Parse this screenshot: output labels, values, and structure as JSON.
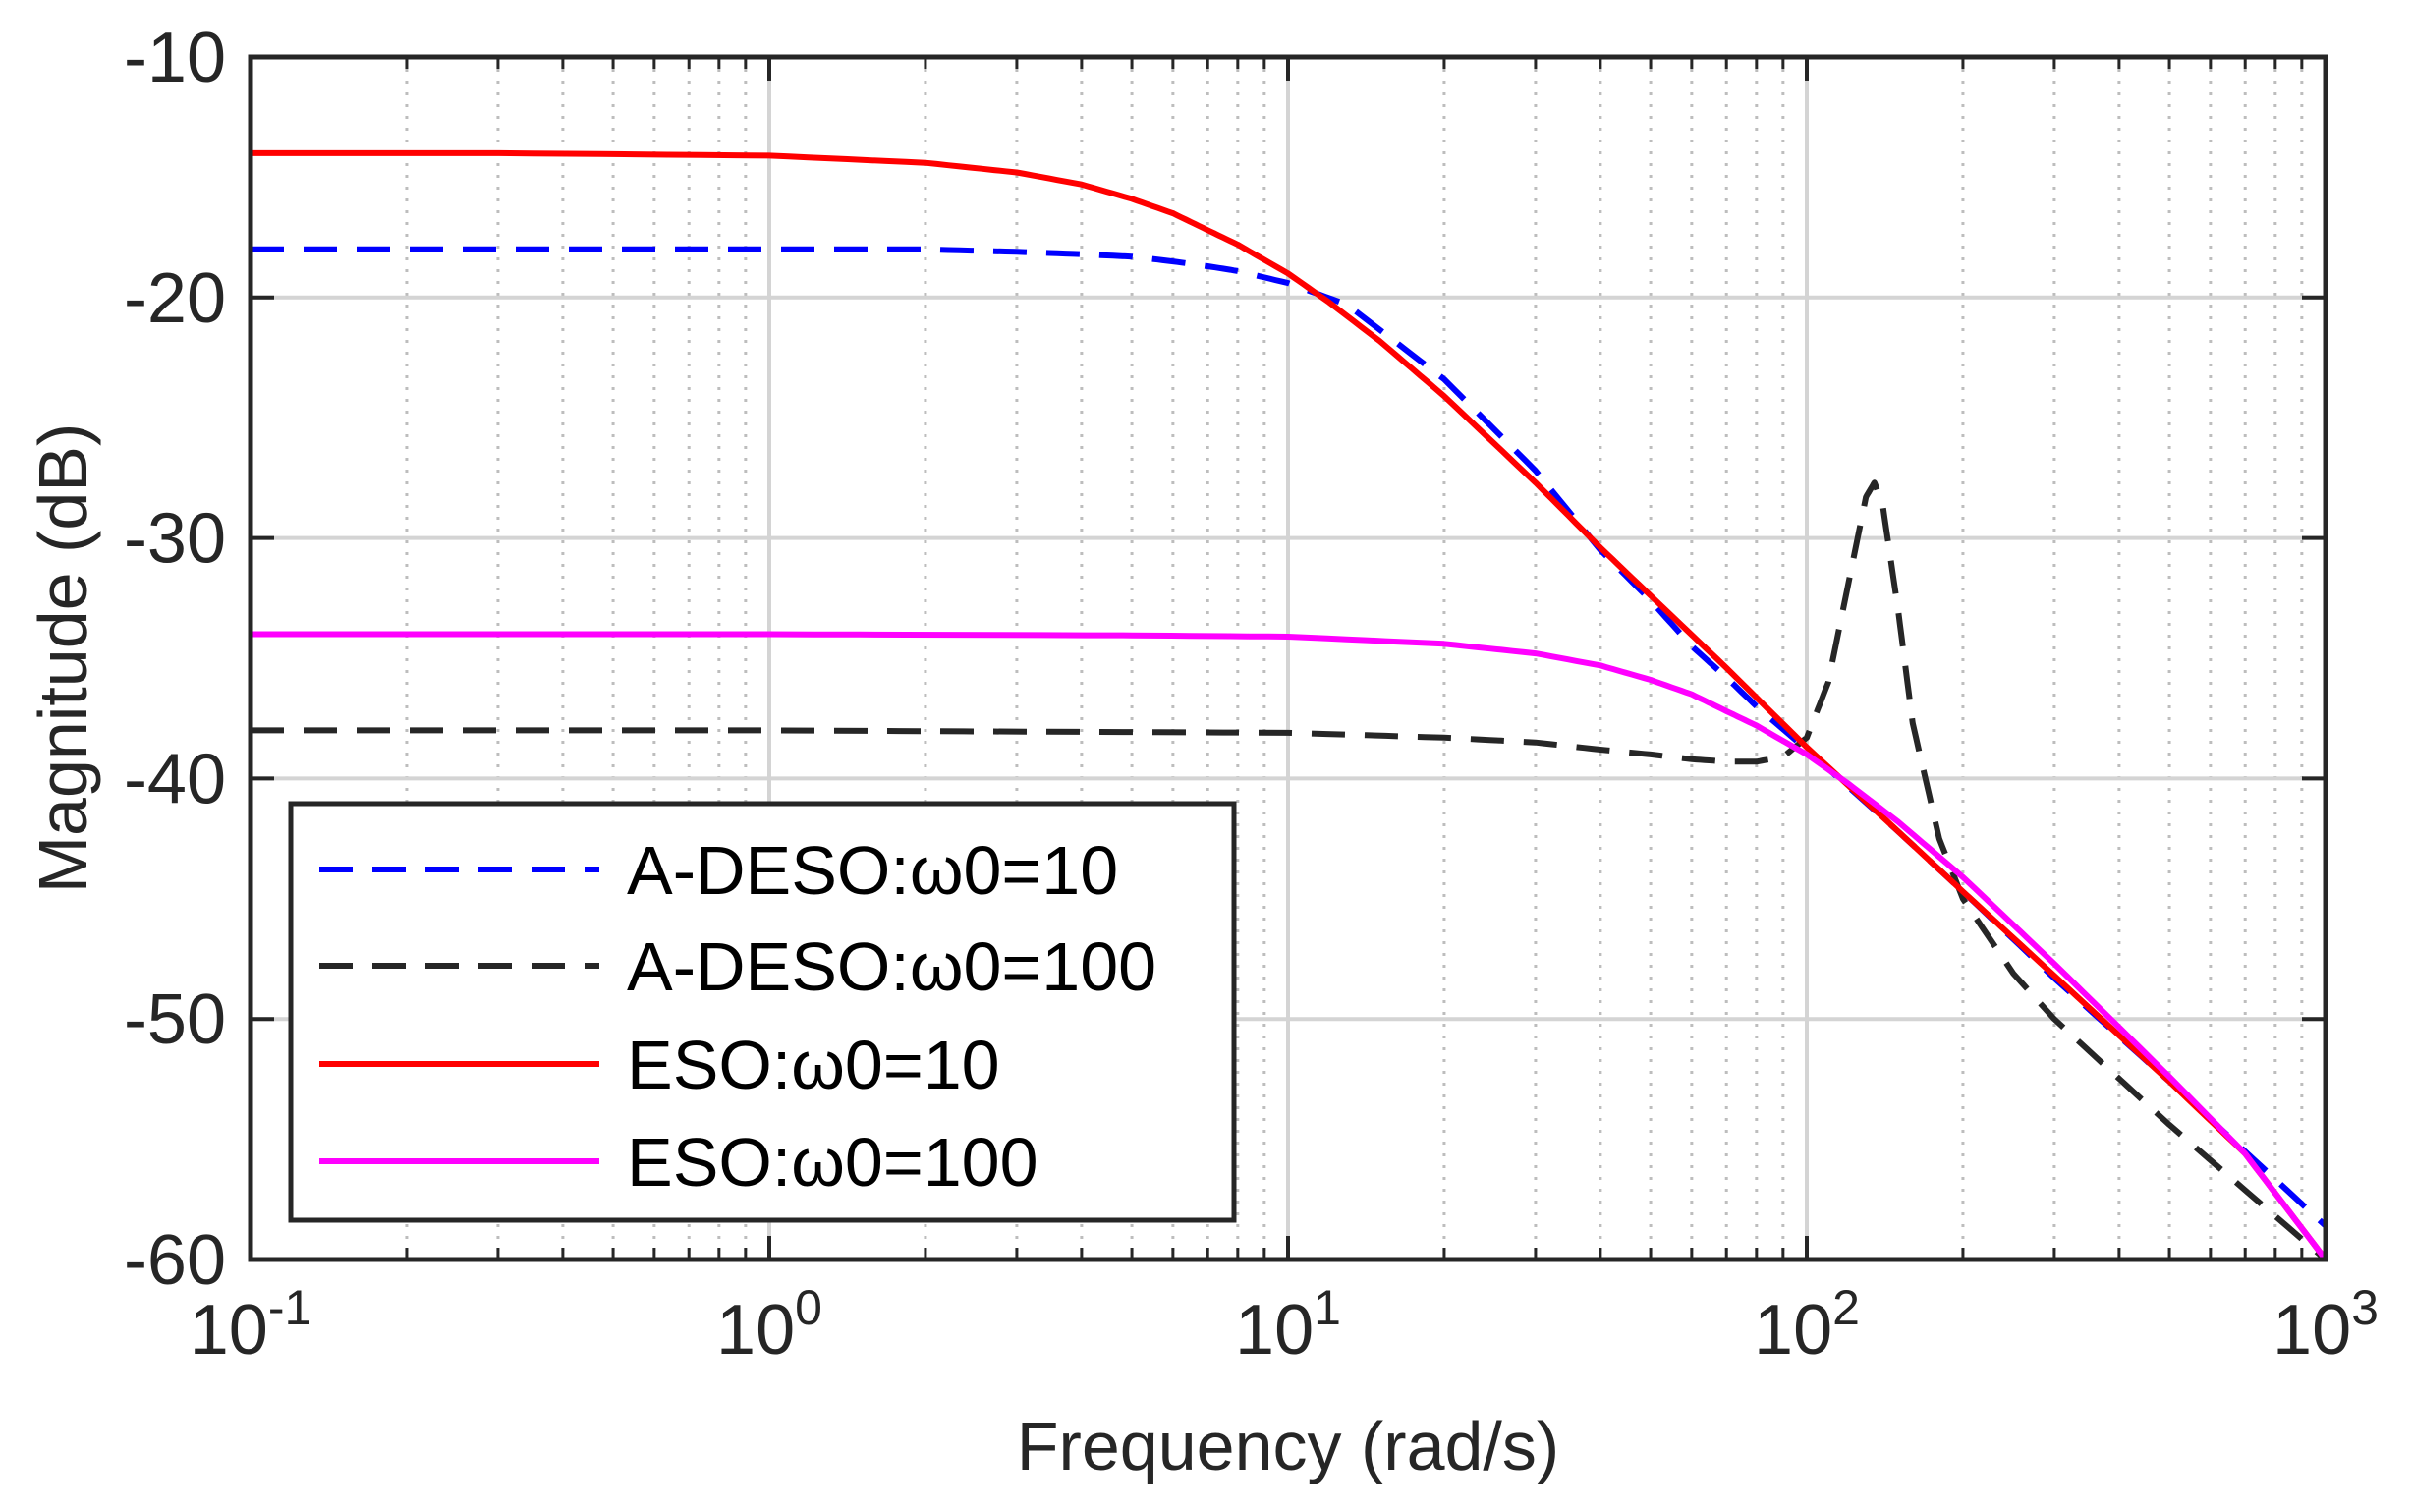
{
  "chart_data": {
    "type": "line",
    "title": "",
    "xlabel": "Frequency (rad/s)",
    "ylabel": "Magnitude (dB)",
    "xscale": "log",
    "xlim": [
      0.1,
      1000
    ],
    "ylim": [
      -60,
      -10
    ],
    "grid": true,
    "legend_location": "bottom-left",
    "x_ticks": [
      {
        "value": 0.1,
        "base": "10",
        "exp": "-1"
      },
      {
        "value": 1,
        "base": "10",
        "exp": "0"
      },
      {
        "value": 10,
        "base": "10",
        "exp": "1"
      },
      {
        "value": 100,
        "base": "10",
        "exp": "2"
      },
      {
        "value": 1000,
        "base": "10",
        "exp": "3"
      }
    ],
    "y_ticks": [
      {
        "value": -10,
        "label": "-10"
      },
      {
        "value": -20,
        "label": "-20"
      },
      {
        "value": -30,
        "label": "-30"
      },
      {
        "value": -40,
        "label": "-40"
      },
      {
        "value": -50,
        "label": "-50"
      },
      {
        "value": -60,
        "label": "-60"
      }
    ],
    "series": [
      {
        "name": "A-DESO:ω0=10",
        "color": "#0000ff",
        "dash": "dashed",
        "x": [
          0.1,
          0.3,
          1,
          2,
          3,
          4,
          5,
          6,
          7,
          8,
          10,
          13,
          20,
          30,
          40,
          50,
          60,
          70,
          80,
          100,
          150,
          200,
          300,
          500,
          1000
        ],
        "y": [
          -18,
          -18,
          -18,
          -18,
          -18.1,
          -18.2,
          -18.3,
          -18.5,
          -18.7,
          -18.9,
          -19.4,
          -20.3,
          -23.4,
          -27.2,
          -30.5,
          -32.6,
          -34.5,
          -35.8,
          -37.0,
          -38.8,
          -42.2,
          -44.7,
          -48.3,
          -52.6,
          -58.6
        ]
      },
      {
        "name": "A-DESO:ω0=100",
        "color": "#262626",
        "dash": "dashed",
        "x": [
          0.1,
          1,
          10,
          20,
          30,
          40,
          50,
          60,
          70,
          80,
          90,
          100,
          110,
          120,
          130,
          135,
          140,
          150,
          160,
          180,
          200,
          250,
          300,
          500,
          1000
        ],
        "y": [
          -38,
          -38,
          -38.1,
          -38.3,
          -38.5,
          -38.8,
          -39.0,
          -39.2,
          -39.3,
          -39.3,
          -39.1,
          -38.3,
          -36.0,
          -32.0,
          -28.3,
          -27.7,
          -28.6,
          -33.0,
          -37.7,
          -42.5,
          -45.0,
          -48.1,
          -50.0,
          -54.4,
          -60
        ]
      },
      {
        "name": "ESO:ω0=10",
        "color": "#ff0000",
        "dash": "solid",
        "x": [
          0.1,
          0.3,
          1,
          2,
          3,
          4,
          5,
          6,
          7,
          8,
          10,
          12,
          15,
          20,
          30,
          40,
          50,
          70,
          100,
          150,
          200,
          300,
          500,
          700,
          1000
        ],
        "y": [
          -14,
          -14,
          -14.1,
          -14.4,
          -14.8,
          -15.3,
          -15.9,
          -16.5,
          -17.2,
          -17.8,
          -19.0,
          -20.2,
          -21.8,
          -24.1,
          -27.7,
          -30.4,
          -32.4,
          -35.4,
          -38.7,
          -42.2,
          -44.7,
          -48.2,
          -52.6,
          -55.6,
          -60
        ]
      },
      {
        "name": "ESO:ω0=100",
        "color": "#ff00ff",
        "dash": "solid",
        "x": [
          0.1,
          1,
          5,
          10,
          20,
          30,
          40,
          50,
          60,
          70,
          80,
          100,
          120,
          150,
          200,
          300,
          500,
          700,
          1000
        ],
        "y": [
          -34,
          -34,
          -34.05,
          -34.1,
          -34.4,
          -34.8,
          -35.3,
          -35.9,
          -36.5,
          -37.2,
          -37.8,
          -39.0,
          -40.2,
          -41.8,
          -44.1,
          -47.7,
          -52.4,
          -55.6,
          -60
        ]
      }
    ]
  }
}
